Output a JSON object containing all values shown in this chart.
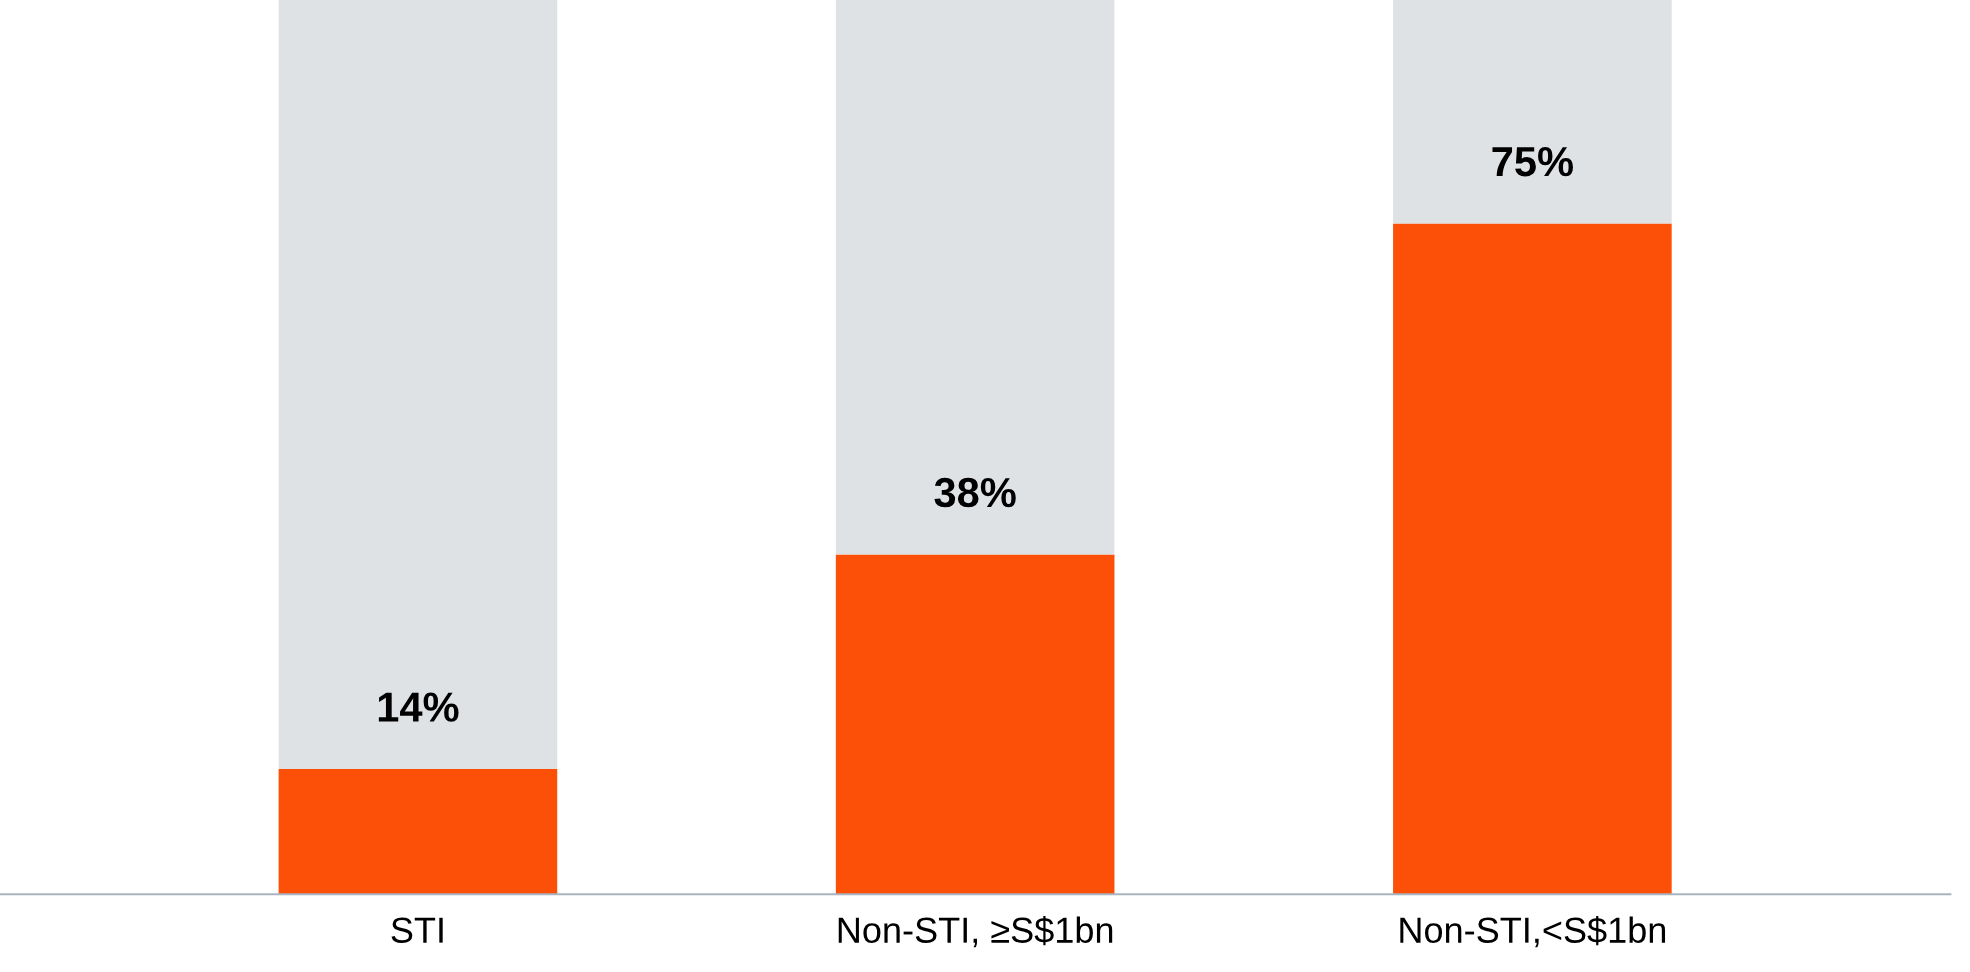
{
  "chart_data": {
    "type": "bar",
    "stacked": true,
    "categories": [
      "STI",
      "Non-STI, ≥S$1bn",
      "Non-STI,<S$1bn"
    ],
    "series": [
      {
        "color": "#fc5008",
        "values": [
          14,
          38,
          75
        ],
        "value_labels": [
          "14%",
          "38%",
          "75%"
        ]
      },
      {
        "color": "#dfe2e5",
        "values": [
          86,
          62,
          25
        ]
      }
    ],
    "ylim": [
      0,
      100
    ],
    "tick_labels": "x",
    "grid": false,
    "legend": false
  }
}
